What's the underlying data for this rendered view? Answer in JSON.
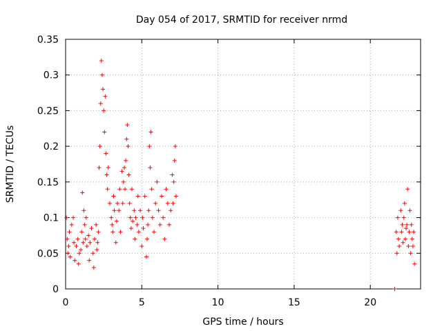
{
  "chart_data": {
    "type": "scatter",
    "title": "Day 054 of 2017, SRMTID for receiver nrmd",
    "xlabel": "GPS time / hours",
    "ylabel": "SRMTID / TECUs",
    "xlim": [
      0,
      23.3
    ],
    "ylim": [
      0,
      0.35
    ],
    "xticks": [
      0,
      5,
      10,
      15,
      20
    ],
    "xtick_labels": [
      "0",
      "5",
      "10",
      "15",
      "20"
    ],
    "yticks": [
      0,
      0.05,
      0.1,
      0.15,
      0.2,
      0.25,
      0.3,
      0.35
    ],
    "ytick_labels": [
      "0",
      "0.05",
      "0.1",
      "0.15",
      "0.2",
      "0.25",
      "0.3",
      "0.35"
    ],
    "grid": true,
    "marker": "plus",
    "color": "#ff0000",
    "series": [
      {
        "name": "nrmd",
        "x": [
          0.05,
          0.1,
          0.15,
          0.2,
          0.25,
          0.3,
          0.4,
          0.5,
          0.55,
          0.6,
          0.7,
          0.8,
          0.85,
          0.9,
          1.0,
          1.05,
          1.1,
          1.15,
          1.2,
          1.25,
          1.3,
          1.35,
          1.4,
          1.5,
          1.55,
          1.6,
          1.7,
          1.8,
          1.85,
          1.9,
          2.0,
          2.05,
          2.1,
          2.15,
          2.2,
          2.25,
          2.3,
          2.35,
          2.4,
          2.45,
          2.5,
          2.55,
          2.6,
          2.65,
          2.7,
          2.75,
          2.8,
          2.9,
          3.0,
          3.05,
          3.1,
          3.15,
          3.2,
          3.3,
          3.35,
          3.4,
          3.5,
          3.55,
          3.6,
          3.7,
          3.75,
          3.8,
          3.85,
          3.9,
          3.95,
          4.0,
          4.05,
          4.1,
          4.15,
          4.2,
          4.25,
          4.3,
          4.35,
          4.4,
          4.5,
          4.55,
          4.6,
          4.7,
          4.75,
          4.8,
          4.9,
          5.0,
          5.05,
          5.1,
          5.2,
          5.3,
          5.35,
          5.4,
          5.45,
          5.5,
          5.55,
          5.6,
          5.65,
          5.7,
          5.8,
          5.9,
          6.0,
          6.1,
          6.2,
          6.3,
          6.4,
          6.5,
          6.6,
          6.7,
          6.8,
          6.9,
          7.0,
          7.05,
          7.1,
          7.15,
          7.2,
          7.25,
          21.6,
          21.7,
          21.75,
          21.8,
          21.85,
          21.9,
          22.0,
          22.05,
          22.1,
          22.15,
          22.2,
          22.25,
          22.3,
          22.35,
          22.4,
          22.45,
          22.5,
          22.55,
          22.6,
          22.65,
          22.7,
          22.75,
          22.8,
          22.85,
          22.9
        ],
        "y": [
          0.1,
          0.07,
          0.05,
          0.06,
          0.08,
          0.045,
          0.09,
          0.1,
          0.065,
          0.04,
          0.06,
          0.07,
          0.035,
          0.05,
          0.055,
          0.08,
          0.135,
          0.065,
          0.11,
          0.09,
          0.07,
          0.1,
          0.06,
          0.075,
          0.04,
          0.065,
          0.085,
          0.05,
          0.03,
          0.07,
          0.09,
          0.055,
          0.065,
          0.08,
          0.17,
          0.2,
          0.26,
          0.32,
          0.3,
          0.28,
          0.25,
          0.22,
          0.27,
          0.19,
          0.16,
          0.14,
          0.17,
          0.12,
          0.1,
          0.09,
          0.08,
          0.13,
          0.11,
          0.065,
          0.095,
          0.12,
          0.11,
          0.14,
          0.08,
          0.165,
          0.12,
          0.15,
          0.17,
          0.14,
          0.18,
          0.21,
          0.23,
          0.2,
          0.16,
          0.12,
          0.1,
          0.085,
          0.14,
          0.095,
          0.11,
          0.07,
          0.1,
          0.09,
          0.13,
          0.08,
          0.11,
          0.06,
          0.1,
          0.085,
          0.13,
          0.045,
          0.07,
          0.09,
          0.11,
          0.2,
          0.17,
          0.22,
          0.14,
          0.1,
          0.08,
          0.12,
          0.15,
          0.11,
          0.09,
          0.13,
          0.1,
          0.07,
          0.14,
          0.12,
          0.09,
          0.11,
          0.16,
          0.12,
          0.15,
          0.18,
          0.2,
          0.13,
          0.0,
          0.08,
          0.05,
          0.1,
          0.07,
          0.06,
          0.11,
          0.08,
          0.09,
          0.065,
          0.1,
          0.12,
          0.07,
          0.085,
          0.09,
          0.14,
          0.06,
          0.08,
          0.11,
          0.05,
          0.09,
          0.07,
          0.06,
          0.08,
          0.035
        ]
      }
    ]
  }
}
